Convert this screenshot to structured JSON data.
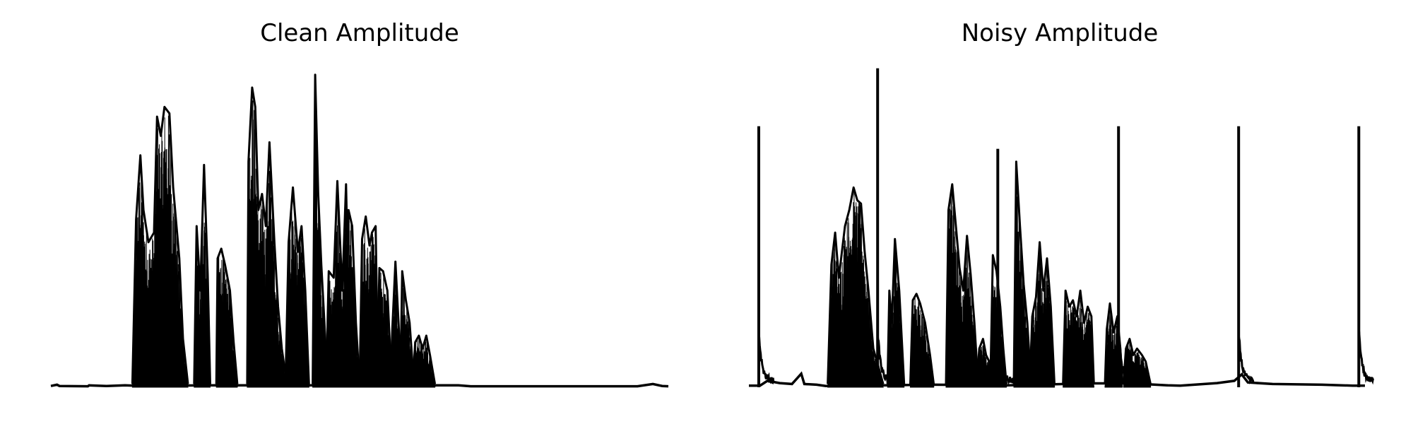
{
  "chart_data": [
    {
      "type": "line",
      "title": "Clean Amplitude",
      "xlabel": "",
      "ylabel": "",
      "grid": false,
      "axes_visible": false,
      "line_color": "#000000",
      "xlim": [
        0,
        1000
      ],
      "ylim": [
        0,
        1
      ],
      "background": [
        {
          "x": 0,
          "y": 0.004
        },
        {
          "x": 10,
          "y": 0.008
        },
        {
          "x": 14,
          "y": 0.004
        },
        {
          "x": 60,
          "y": 0.003
        },
        {
          "x": 62,
          "y": 0.006
        },
        {
          "x": 90,
          "y": 0.004
        },
        {
          "x": 120,
          "y": 0.006
        },
        {
          "x": 150,
          "y": 0.004
        },
        {
          "x": 250,
          "y": 0.006
        },
        {
          "x": 400,
          "y": 0.006
        },
        {
          "x": 520,
          "y": 0.006
        },
        {
          "x": 660,
          "y": 0.006
        },
        {
          "x": 680,
          "y": 0.003
        },
        {
          "x": 800,
          "y": 0.003
        },
        {
          "x": 950,
          "y": 0.003
        },
        {
          "x": 975,
          "y": 0.01
        },
        {
          "x": 990,
          "y": 0.004
        },
        {
          "x": 1000,
          "y": 0.003
        }
      ],
      "bursts": [
        {
          "start": 132,
          "end": 222,
          "peaks": [
            {
              "x": 138,
              "y": 0.52
            },
            {
              "x": 145,
              "y": 0.72
            },
            {
              "x": 150,
              "y": 0.55
            },
            {
              "x": 158,
              "y": 0.45
            },
            {
              "x": 167,
              "y": 0.48
            },
            {
              "x": 172,
              "y": 0.84
            },
            {
              "x": 178,
              "y": 0.78
            },
            {
              "x": 184,
              "y": 0.87
            },
            {
              "x": 192,
              "y": 0.85
            },
            {
              "x": 198,
              "y": 0.62
            },
            {
              "x": 208,
              "y": 0.4
            },
            {
              "x": 214,
              "y": 0.15
            }
          ]
        },
        {
          "start": 232,
          "end": 258,
          "peaks": [
            {
              "x": 236,
              "y": 0.5
            },
            {
              "x": 242,
              "y": 0.3
            },
            {
              "x": 248,
              "y": 0.69
            },
            {
              "x": 254,
              "y": 0.35
            }
          ]
        },
        {
          "start": 268,
          "end": 302,
          "peaks": [
            {
              "x": 270,
              "y": 0.4
            },
            {
              "x": 276,
              "y": 0.43
            },
            {
              "x": 282,
              "y": 0.38
            },
            {
              "x": 290,
              "y": 0.3
            },
            {
              "x": 296,
              "y": 0.14
            }
          ]
        },
        {
          "start": 318,
          "end": 382,
          "peaks": [
            {
              "x": 320,
              "y": 0.7
            },
            {
              "x": 326,
              "y": 0.93
            },
            {
              "x": 331,
              "y": 0.87
            },
            {
              "x": 336,
              "y": 0.55
            },
            {
              "x": 342,
              "y": 0.6
            },
            {
              "x": 348,
              "y": 0.5
            },
            {
              "x": 354,
              "y": 0.76
            },
            {
              "x": 362,
              "y": 0.45
            },
            {
              "x": 368,
              "y": 0.25
            },
            {
              "x": 374,
              "y": 0.12
            }
          ]
        },
        {
          "start": 380,
          "end": 418,
          "peaks": [
            {
              "x": 385,
              "y": 0.45
            },
            {
              "x": 392,
              "y": 0.62
            },
            {
              "x": 400,
              "y": 0.42
            },
            {
              "x": 406,
              "y": 0.5
            },
            {
              "x": 412,
              "y": 0.3
            }
          ]
        },
        {
          "start": 424,
          "end": 448,
          "peaks": [
            {
              "x": 428,
              "y": 0.97
            },
            {
              "x": 433,
              "y": 0.6
            },
            {
              "x": 438,
              "y": 0.38
            },
            {
              "x": 443,
              "y": 0.2
            }
          ]
        },
        {
          "start": 446,
          "end": 485,
          "peaks": [
            {
              "x": 450,
              "y": 0.36
            },
            {
              "x": 458,
              "y": 0.34
            },
            {
              "x": 464,
              "y": 0.64
            },
            {
              "x": 472,
              "y": 0.3
            },
            {
              "x": 478,
              "y": 0.63
            }
          ]
        },
        {
          "start": 478,
          "end": 500,
          "peaks": [
            {
              "x": 482,
              "y": 0.55
            },
            {
              "x": 488,
              "y": 0.5
            },
            {
              "x": 494,
              "y": 0.2
            }
          ]
        },
        {
          "start": 500,
          "end": 530,
          "peaks": [
            {
              "x": 504,
              "y": 0.46
            },
            {
              "x": 510,
              "y": 0.53
            },
            {
              "x": 516,
              "y": 0.44
            },
            {
              "x": 520,
              "y": 0.48
            },
            {
              "x": 526,
              "y": 0.5
            }
          ]
        },
        {
          "start": 528,
          "end": 552,
          "peaks": [
            {
              "x": 532,
              "y": 0.37
            },
            {
              "x": 538,
              "y": 0.36
            },
            {
              "x": 545,
              "y": 0.3
            }
          ]
        },
        {
          "start": 550,
          "end": 568,
          "peaks": [
            {
              "x": 553,
              "y": 0.18
            },
            {
              "x": 558,
              "y": 0.39
            },
            {
              "x": 563,
              "y": 0.2
            }
          ]
        },
        {
          "start": 566,
          "end": 588,
          "peaks": [
            {
              "x": 569,
              "y": 0.36
            },
            {
              "x": 575,
              "y": 0.27
            },
            {
              "x": 581,
              "y": 0.2
            }
          ]
        },
        {
          "start": 586,
          "end": 622,
          "peaks": [
            {
              "x": 590,
              "y": 0.14
            },
            {
              "x": 596,
              "y": 0.16
            },
            {
              "x": 602,
              "y": 0.12
            },
            {
              "x": 608,
              "y": 0.16
            },
            {
              "x": 614,
              "y": 0.1
            }
          ]
        }
      ]
    },
    {
      "type": "line",
      "title": "Noisy Amplitude",
      "xlabel": "",
      "ylabel": "",
      "grid": false,
      "axes_visible": false,
      "line_color": "#000000",
      "xlim": [
        0,
        1000
      ],
      "ylim": [
        0,
        1
      ],
      "background": [
        {
          "x": 0,
          "y": 0.005
        },
        {
          "x": 18,
          "y": 0.005
        },
        {
          "x": 30,
          "y": 0.02
        },
        {
          "x": 50,
          "y": 0.013
        },
        {
          "x": 70,
          "y": 0.01
        },
        {
          "x": 85,
          "y": 0.042
        },
        {
          "x": 90,
          "y": 0.01
        },
        {
          "x": 110,
          "y": 0.008
        },
        {
          "x": 125,
          "y": 0.004
        },
        {
          "x": 300,
          "y": 0.008
        },
        {
          "x": 420,
          "y": 0.006
        },
        {
          "x": 560,
          "y": 0.012
        },
        {
          "x": 620,
          "y": 0.012
        },
        {
          "x": 680,
          "y": 0.006
        },
        {
          "x": 700,
          "y": 0.005
        },
        {
          "x": 760,
          "y": 0.013
        },
        {
          "x": 788,
          "y": 0.02
        },
        {
          "x": 800,
          "y": 0.04
        },
        {
          "x": 810,
          "y": 0.015
        },
        {
          "x": 850,
          "y": 0.01
        },
        {
          "x": 930,
          "y": 0.008
        },
        {
          "x": 980,
          "y": 0.005
        },
        {
          "x": 1000,
          "y": 0.005
        }
      ],
      "bursts": [
        {
          "start": 128,
          "end": 218,
          "peaks": [
            {
              "x": 134,
              "y": 0.38
            },
            {
              "x": 140,
              "y": 0.48
            },
            {
              "x": 146,
              "y": 0.34
            },
            {
              "x": 156,
              "y": 0.5
            },
            {
              "x": 163,
              "y": 0.55
            },
            {
              "x": 170,
              "y": 0.62
            },
            {
              "x": 176,
              "y": 0.58
            },
            {
              "x": 182,
              "y": 0.57
            },
            {
              "x": 188,
              "y": 0.42
            },
            {
              "x": 194,
              "y": 0.3
            },
            {
              "x": 202,
              "y": 0.12
            }
          ]
        },
        {
          "start": 225,
          "end": 252,
          "peaks": [
            {
              "x": 228,
              "y": 0.3
            },
            {
              "x": 232,
              "y": 0.2
            },
            {
              "x": 237,
              "y": 0.46
            },
            {
              "x": 244,
              "y": 0.3
            }
          ]
        },
        {
          "start": 262,
          "end": 300,
          "peaks": [
            {
              "x": 266,
              "y": 0.27
            },
            {
              "x": 272,
              "y": 0.29
            },
            {
              "x": 278,
              "y": 0.26
            },
            {
              "x": 286,
              "y": 0.2
            },
            {
              "x": 294,
              "y": 0.1
            }
          ]
        },
        {
          "start": 320,
          "end": 372,
          "peaks": [
            {
              "x": 324,
              "y": 0.55
            },
            {
              "x": 330,
              "y": 0.63
            },
            {
              "x": 336,
              "y": 0.5
            },
            {
              "x": 342,
              "y": 0.37
            },
            {
              "x": 348,
              "y": 0.3
            },
            {
              "x": 354,
              "y": 0.47
            },
            {
              "x": 360,
              "y": 0.35
            },
            {
              "x": 366,
              "y": 0.2
            }
          ]
        },
        {
          "start": 370,
          "end": 395,
          "peaks": [
            {
              "x": 374,
              "y": 0.12
            },
            {
              "x": 380,
              "y": 0.15
            },
            {
              "x": 385,
              "y": 0.1
            },
            {
              "x": 390,
              "y": 0.08
            }
          ]
        },
        {
          "start": 392,
          "end": 418,
          "peaks": [
            {
              "x": 396,
              "y": 0.41
            },
            {
              "x": 402,
              "y": 0.36
            },
            {
              "x": 408,
              "y": 0.25
            },
            {
              "x": 413,
              "y": 0.12
            }
          ]
        },
        {
          "start": 430,
          "end": 458,
          "peaks": [
            {
              "x": 434,
              "y": 0.7
            },
            {
              "x": 440,
              "y": 0.5
            },
            {
              "x": 446,
              "y": 0.32
            },
            {
              "x": 452,
              "y": 0.2
            }
          ]
        },
        {
          "start": 456,
          "end": 496,
          "peaks": [
            {
              "x": 460,
              "y": 0.22
            },
            {
              "x": 466,
              "y": 0.28
            },
            {
              "x": 472,
              "y": 0.45
            },
            {
              "x": 478,
              "y": 0.3
            },
            {
              "x": 484,
              "y": 0.4
            },
            {
              "x": 490,
              "y": 0.25
            }
          ]
        },
        {
          "start": 510,
          "end": 560,
          "peaks": [
            {
              "x": 514,
              "y": 0.3
            },
            {
              "x": 520,
              "y": 0.25
            },
            {
              "x": 526,
              "y": 0.27
            },
            {
              "x": 532,
              "y": 0.22
            },
            {
              "x": 538,
              "y": 0.3
            },
            {
              "x": 544,
              "y": 0.2
            },
            {
              "x": 550,
              "y": 0.25
            },
            {
              "x": 556,
              "y": 0.22
            }
          ]
        },
        {
          "start": 578,
          "end": 606,
          "peaks": [
            {
              "x": 581,
              "y": 0.18
            },
            {
              "x": 586,
              "y": 0.26
            },
            {
              "x": 592,
              "y": 0.17
            },
            {
              "x": 598,
              "y": 0.22
            },
            {
              "x": 603,
              "y": 0.12
            }
          ]
        },
        {
          "start": 608,
          "end": 652,
          "peaks": [
            {
              "x": 612,
              "y": 0.12
            },
            {
              "x": 618,
              "y": 0.15
            },
            {
              "x": 624,
              "y": 0.1
            },
            {
              "x": 630,
              "y": 0.12
            },
            {
              "x": 638,
              "y": 0.1
            },
            {
              "x": 644,
              "y": 0.08
            }
          ]
        }
      ],
      "spikes": [
        {
          "x": 16,
          "y": 0.81
        },
        {
          "x": 209,
          "y": 0.99
        },
        {
          "x": 404,
          "y": 0.74
        },
        {
          "x": 600,
          "y": 0.81
        },
        {
          "x": 795,
          "y": 0.81
        },
        {
          "x": 990,
          "y": 0.81
        }
      ]
    }
  ]
}
